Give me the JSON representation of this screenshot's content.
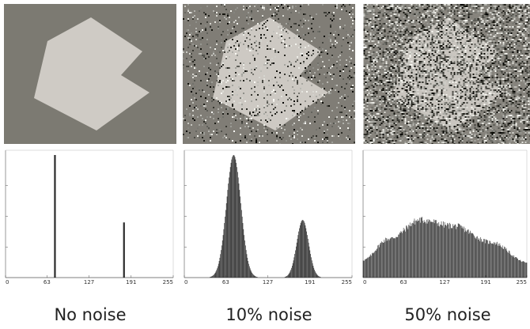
{
  "colors": {
    "background_gray": "#7c7a72",
    "shape_gray": "#cfcbc5",
    "bar": "#2a2a2a",
    "axis": "#555555"
  },
  "chart_data": [
    {
      "type": "bar",
      "caption": "No noise",
      "xlim": [
        0,
        255
      ],
      "xticks": [
        0,
        63,
        127,
        191,
        255
      ],
      "ymax": 1.0,
      "noise_fraction": 0.0,
      "bins": [
        {
          "x": 75,
          "y": 1.0
        },
        {
          "x": 180,
          "y": 0.45
        }
      ]
    },
    {
      "type": "bar",
      "caption": "10% noise",
      "xlim": [
        0,
        255
      ],
      "xticks": [
        0,
        63,
        127,
        191,
        255
      ],
      "ymax": 1.0,
      "noise_fraction": 0.1,
      "peaks": [
        {
          "center": 75,
          "sigma": 11,
          "height": 1.0
        },
        {
          "center": 180,
          "sigma": 9,
          "height": 0.47
        }
      ]
    },
    {
      "type": "bar",
      "caption": "50% noise",
      "xlim": [
        0,
        255
      ],
      "xticks": [
        0,
        63,
        127,
        191,
        255
      ],
      "ymax": 1.0,
      "noise_fraction": 0.5,
      "envelope": [
        {
          "x": 0,
          "y": 0.15
        },
        {
          "x": 40,
          "y": 0.33
        },
        {
          "x": 90,
          "y": 0.49
        },
        {
          "x": 140,
          "y": 0.44
        },
        {
          "x": 200,
          "y": 0.3
        },
        {
          "x": 255,
          "y": 0.13
        }
      ]
    }
  ]
}
